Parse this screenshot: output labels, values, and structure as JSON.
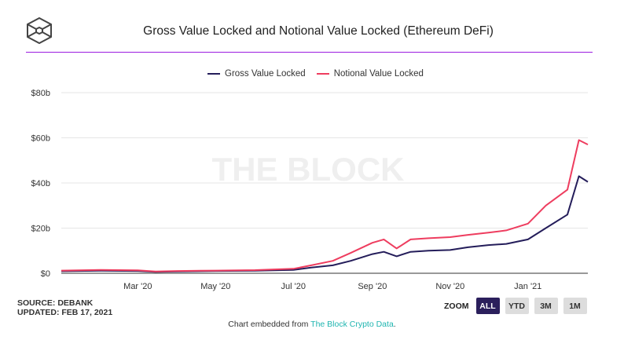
{
  "header": {
    "title": "Gross Value Locked and Notional Value Locked (Ethereum DeFi)",
    "logo": "the-block-cube-logo"
  },
  "watermark": "THE BLOCK",
  "footer": {
    "source": "SOURCE: DEBANK",
    "updated": "UPDATED: FEB 17, 2021",
    "zoom_label": "ZOOM",
    "zoom_buttons": [
      "ALL",
      "YTD",
      "3M",
      "1M"
    ],
    "zoom_selected": "ALL",
    "embed_prefix": "Chart embedded from ",
    "embed_link": "The Block Crypto Data",
    "embed_suffix": "."
  },
  "chart_data": {
    "type": "line",
    "title": "Gross Value Locked and Notional Value Locked (Ethereum DeFi)",
    "xlabel": "",
    "ylabel": "",
    "legend": "top-center",
    "grid": true,
    "xlim": [
      "2020-01-01",
      "2021-02-17"
    ],
    "ylim": [
      0,
      80
    ],
    "x_ticks": [
      {
        "date": "2020-03-01",
        "label": "Mar '20"
      },
      {
        "date": "2020-05-01",
        "label": "May '20"
      },
      {
        "date": "2020-07-01",
        "label": "Jul '20"
      },
      {
        "date": "2020-09-01",
        "label": "Sep '20"
      },
      {
        "date": "2020-11-01",
        "label": "Nov '20"
      },
      {
        "date": "2021-01-01",
        "label": "Jan '21"
      }
    ],
    "y_ticks": [
      {
        "value": 0,
        "label": "$0"
      },
      {
        "value": 20,
        "label": "$20b"
      },
      {
        "value": 40,
        "label": "$40b"
      },
      {
        "value": 60,
        "label": "$60b"
      },
      {
        "value": 80,
        "label": "$80b"
      }
    ],
    "x": [
      "2020-01-01",
      "2020-02-01",
      "2020-03-01",
      "2020-03-15",
      "2020-04-01",
      "2020-05-01",
      "2020-06-01",
      "2020-07-01",
      "2020-07-15",
      "2020-08-01",
      "2020-08-15",
      "2020-09-01",
      "2020-09-10",
      "2020-09-20",
      "2020-10-01",
      "2020-10-15",
      "2020-11-01",
      "2020-11-15",
      "2020-12-01",
      "2020-12-15",
      "2021-01-01",
      "2021-01-15",
      "2021-02-01",
      "2021-02-10",
      "2021-02-17"
    ],
    "series": [
      {
        "name": "Gross Value Locked",
        "color": "#241d5a",
        "values": [
          0.9,
          1.1,
          1.0,
          0.6,
          0.8,
          1.0,
          1.1,
          1.5,
          2.5,
          3.5,
          5.5,
          8.5,
          9.5,
          7.5,
          9.5,
          10,
          10.3,
          11.5,
          12.5,
          13,
          15,
          20,
          26,
          43,
          40.5
        ]
      },
      {
        "name": "Notional Value Locked",
        "color": "#ee3d5f",
        "values": [
          1.2,
          1.5,
          1.3,
          0.8,
          1.0,
          1.2,
          1.4,
          2.0,
          3.5,
          5.5,
          9,
          13.5,
          15,
          11,
          15,
          15.5,
          16,
          17,
          18,
          19,
          22,
          30,
          37,
          59,
          57
        ]
      }
    ]
  }
}
